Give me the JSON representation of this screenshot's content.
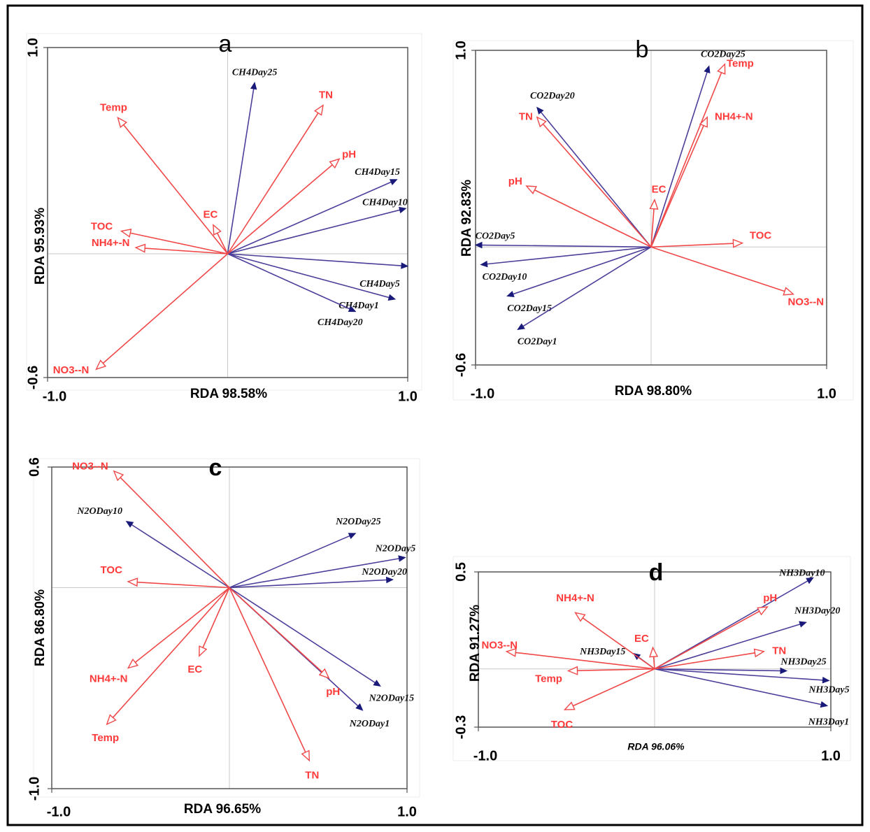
{
  "chart_data": [
    {
      "panel": "a",
      "type": "rda-biplot",
      "xlabel": "RDA 98.58%",
      "ylabel": "RDA 95.93%",
      "xlim": [
        -1.0,
        1.0
      ],
      "ylim": [
        -0.6,
        1.0
      ],
      "xticks": [
        "-1.0",
        "1.0"
      ],
      "yticks": [
        "-0.6",
        "1.0"
      ],
      "environment": [
        {
          "name": "Temp",
          "x": -0.61,
          "y": 0.66
        },
        {
          "name": "TN",
          "x": 0.53,
          "y": 0.72
        },
        {
          "name": "pH",
          "x": 0.62,
          "y": 0.46
        },
        {
          "name": "EC",
          "x": -0.08,
          "y": 0.14
        },
        {
          "name": "TOC",
          "x": -0.59,
          "y": 0.11
        },
        {
          "name": "NH4+-N",
          "x": -0.51,
          "y": 0.03
        },
        {
          "name": "NO3--N",
          "x": -0.73,
          "y": -0.56
        }
      ],
      "species": [
        {
          "name": "CH4Day25",
          "x": 0.15,
          "y": 0.83
        },
        {
          "name": "CH4Day15",
          "x": 0.94,
          "y": 0.36
        },
        {
          "name": "CH4Day10",
          "x": 0.99,
          "y": 0.22
        },
        {
          "name": "CH4Day5",
          "x": 1.0,
          "y": -0.06
        },
        {
          "name": "CH4Day1",
          "x": 0.93,
          "y": -0.22
        },
        {
          "name": "CH4Day20",
          "x": 0.71,
          "y": -0.28
        }
      ]
    },
    {
      "panel": "b",
      "type": "rda-biplot",
      "xlabel": "RDA 98.80%",
      "ylabel": "RDA 92.83%",
      "xlim": [
        -1.0,
        1.0
      ],
      "ylim": [
        -0.6,
        1.0
      ],
      "xticks": [
        "-1.0",
        "1.0"
      ],
      "yticks": [
        "-0.6",
        "1.0"
      ],
      "environment": [
        {
          "name": "Temp",
          "x": 0.42,
          "y": 0.93
        },
        {
          "name": "NH4+-N",
          "x": 0.32,
          "y": 0.66
        },
        {
          "name": "EC",
          "x": 0.02,
          "y": 0.24
        },
        {
          "name": "TN",
          "x": -0.65,
          "y": 0.66
        },
        {
          "name": "pH",
          "x": -0.71,
          "y": 0.31
        },
        {
          "name": "TOC",
          "x": 0.52,
          "y": 0.02
        },
        {
          "name": "NO3--N",
          "x": 0.81,
          "y": -0.24
        }
      ],
      "species": [
        {
          "name": "CO2Day25",
          "x": 0.33,
          "y": 0.92
        },
        {
          "name": "CO2Day20",
          "x": -0.65,
          "y": 0.71
        },
        {
          "name": "CO2Day5",
          "x": -1.0,
          "y": 0.01
        },
        {
          "name": "CO2Day10",
          "x": -0.97,
          "y": -0.09
        },
        {
          "name": "CO2Day15",
          "x": -0.82,
          "y": -0.25
        },
        {
          "name": "CO2Day1",
          "x": -0.76,
          "y": -0.42
        }
      ]
    },
    {
      "panel": "c",
      "type": "rda-biplot",
      "xlabel": "RDA 96.65%",
      "ylabel": "RDA 86.80%",
      "xlim": [
        -1.0,
        1.0
      ],
      "ylim": [
        -1.0,
        0.6
      ],
      "xticks": [
        "-1.0",
        "1.0"
      ],
      "yticks": [
        "-1.0",
        "0.6"
      ],
      "environment": [
        {
          "name": "NO3--N",
          "x": -0.65,
          "y": 0.58
        },
        {
          "name": "TOC",
          "x": -0.57,
          "y": 0.03
        },
        {
          "name": "NH4+-N",
          "x": -0.57,
          "y": -0.4
        },
        {
          "name": "EC",
          "x": -0.17,
          "y": -0.34
        },
        {
          "name": "Temp",
          "x": -0.69,
          "y": -0.68
        },
        {
          "name": "pH",
          "x": 0.56,
          "y": -0.45
        },
        {
          "name": "TN",
          "x": 0.45,
          "y": -0.86
        }
      ],
      "species": [
        {
          "name": "N2ODay10",
          "x": -0.58,
          "y": 0.33
        },
        {
          "name": "N2ODay25",
          "x": 0.71,
          "y": 0.27
        },
        {
          "name": "N2ODay5",
          "x": 0.99,
          "y": 0.15
        },
        {
          "name": "N2ODay20",
          "x": 0.92,
          "y": 0.04
        },
        {
          "name": "N2ODay15",
          "x": 0.85,
          "y": -0.49
        },
        {
          "name": "N2ODay1",
          "x": 0.75,
          "y": -0.61
        }
      ]
    },
    {
      "panel": "d",
      "type": "rda-biplot",
      "xlabel": "RDA 96.06%",
      "ylabel": "RDA 91.27%",
      "xlim": [
        -1.0,
        1.0
      ],
      "ylim": [
        -0.3,
        0.5
      ],
      "xticks": [
        "-1.0",
        "1.0"
      ],
      "yticks": [
        "-0.3",
        "0.5"
      ],
      "environment": [
        {
          "name": "NH4+-N",
          "x": -0.45,
          "y": 0.29
        },
        {
          "name": "EC",
          "x": -0.01,
          "y": 0.11
        },
        {
          "name": "NO3--N",
          "x": -0.84,
          "y": 0.09
        },
        {
          "name": "Temp",
          "x": -0.49,
          "y": -0.01
        },
        {
          "name": "TOC",
          "x": -0.51,
          "y": -0.21
        },
        {
          "name": "pH",
          "x": 0.64,
          "y": 0.32
        },
        {
          "name": "TN",
          "x": 0.62,
          "y": 0.09
        }
      ],
      "species": [
        {
          "name": "NH3Day15",
          "x": -0.12,
          "y": 0.08
        },
        {
          "name": "NH3Day10",
          "x": 0.9,
          "y": 0.47
        },
        {
          "name": "NH3Day20",
          "x": 0.86,
          "y": 0.24
        },
        {
          "name": "NH3Day25",
          "x": 0.75,
          "y": -0.01
        },
        {
          "name": "NH3Day5",
          "x": 0.99,
          "y": -0.06
        },
        {
          "name": "NH3Day1",
          "x": 0.98,
          "y": -0.19
        }
      ]
    }
  ]
}
